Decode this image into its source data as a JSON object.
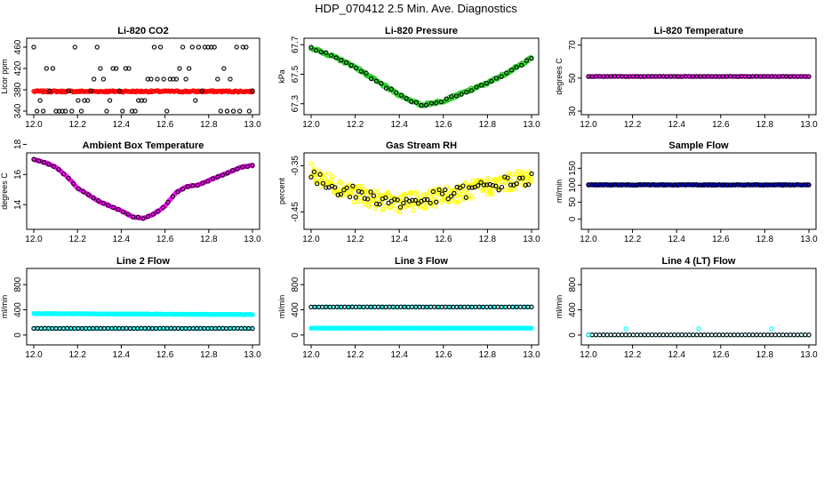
{
  "figure": {
    "title": "HDP_070412  2.5 Min. Ave. Diagnostics"
  },
  "chart_data": [
    {
      "type": "scatter",
      "title": "Li-820 CO2",
      "ylabel": "Licor ppm",
      "xlim": [
        12.0,
        13.0
      ],
      "ylim": [
        340,
        470
      ],
      "x_ticks": [
        "12.0",
        "12.2",
        "12.4",
        "12.6",
        "12.8",
        "13.0"
      ],
      "y_ticks": [
        "340",
        "380",
        "420",
        "460"
      ],
      "series": [
        {
          "name": "main",
          "color": "#ff0000",
          "kind": "flat",
          "value": 377,
          "noise": 1.5,
          "n": 200
        },
        {
          "name": "ref",
          "color": "#000000",
          "kind": "levels",
          "levels": [
            340,
            360,
            378,
            400,
            420,
            460
          ],
          "n": 70
        }
      ]
    },
    {
      "type": "scatter",
      "title": "Li-820 Pressure",
      "ylabel": "kPa",
      "xlim": [
        12.0,
        13.0
      ],
      "ylim": [
        67.25,
        67.72
      ],
      "x_ticks": [
        "12.0",
        "12.2",
        "12.4",
        "12.6",
        "12.8",
        "13.0"
      ],
      "y_ticks": [
        "67.3",
        "67.5",
        "67.7"
      ],
      "series": [
        {
          "name": "main",
          "color": "#22cc22",
          "kind": "curve",
          "xs": [
            12.0,
            12.1,
            12.2,
            12.3,
            12.4,
            12.5,
            12.6,
            12.7,
            12.8,
            12.9,
            13.0
          ],
          "ys": [
            67.68,
            67.62,
            67.55,
            67.45,
            67.36,
            67.29,
            67.32,
            67.38,
            67.44,
            67.52,
            67.61
          ],
          "noise": 0.01,
          "n": 240
        },
        {
          "name": "ref",
          "color": "#000000",
          "kind": "curve",
          "xs": [
            12.0,
            12.1,
            12.2,
            12.3,
            12.4,
            12.5,
            12.6,
            12.7,
            12.8,
            12.9,
            13.0
          ],
          "ys": [
            67.68,
            67.62,
            67.55,
            67.45,
            67.36,
            67.29,
            67.32,
            67.38,
            67.44,
            67.52,
            67.61
          ],
          "noise": 0.008,
          "n": 45
        }
      ]
    },
    {
      "type": "scatter",
      "title": "Li-820 Temperature",
      "ylabel": "degrees C",
      "xlim": [
        12.0,
        13.0
      ],
      "ylim": [
        30,
        72
      ],
      "x_ticks": [
        "12.0",
        "12.2",
        "12.4",
        "12.6",
        "12.8",
        "13.0"
      ],
      "y_ticks": [
        "30",
        "50",
        "70"
      ],
      "series": [
        {
          "name": "main",
          "color": "#ff00ff",
          "kind": "flat",
          "value": 51,
          "noise": 0.05,
          "n": 200
        },
        {
          "name": "ref",
          "color": "#000000",
          "kind": "flat",
          "value": 51,
          "noise": 0.05,
          "n": 60
        }
      ]
    },
    {
      "type": "scatter",
      "title": "Ambient Box Temperature",
      "ylabel": "degrees C",
      "xlim": [
        12.0,
        13.0
      ],
      "ylim": [
        12.6,
        17.2
      ],
      "x_ticks": [
        "12.0",
        "12.2",
        "12.4",
        "12.6",
        "12.8",
        "13.0"
      ],
      "y_ticks": [
        "14",
        "16",
        "18"
      ],
      "series": [
        {
          "name": "main",
          "color": "#ff00ff",
          "kind": "curve",
          "xs": [
            12.0,
            12.05,
            12.1,
            12.15,
            12.2,
            12.3,
            12.4,
            12.45,
            12.5,
            12.55,
            12.6,
            12.65,
            12.7,
            12.75,
            12.8,
            12.85,
            12.9,
            12.95,
            13.0
          ],
          "ys": [
            17.0,
            16.8,
            16.5,
            15.9,
            15.1,
            14.2,
            13.6,
            13.2,
            13.1,
            13.4,
            13.9,
            14.8,
            15.2,
            15.3,
            15.6,
            15.9,
            16.2,
            16.5,
            16.6
          ],
          "noise": 0.03,
          "n": 230
        },
        {
          "name": "ref",
          "color": "#000000",
          "kind": "curve",
          "xs": [
            12.0,
            12.05,
            12.1,
            12.15,
            12.2,
            12.3,
            12.4,
            12.45,
            12.5,
            12.55,
            12.6,
            12.65,
            12.7,
            12.75,
            12.8,
            12.85,
            12.9,
            12.95,
            13.0
          ],
          "ys": [
            17.0,
            16.8,
            16.5,
            15.9,
            15.1,
            14.2,
            13.6,
            13.2,
            13.1,
            13.4,
            13.9,
            14.8,
            15.2,
            15.3,
            15.6,
            15.9,
            16.2,
            16.5,
            16.6
          ],
          "noise": 0.03,
          "n": 45
        }
      ]
    },
    {
      "type": "scatter",
      "title": "Gas Stream RH",
      "ylabel": "percent",
      "xlim": [
        12.0,
        13.0
      ],
      "ylim": [
        -0.48,
        -0.33
      ],
      "x_ticks": [
        "12.0",
        "12.2",
        "12.4",
        "12.6",
        "12.8",
        "13.0"
      ],
      "y_ticks": [
        "-0.45",
        "-0.35"
      ],
      "series": [
        {
          "name": "main",
          "color": "#ffff00",
          "kind": "curve",
          "xs": [
            12.0,
            12.1,
            12.2,
            12.3,
            12.4,
            12.5,
            12.6,
            12.7,
            12.8,
            12.9,
            13.0
          ],
          "ys": [
            -0.365,
            -0.39,
            -0.41,
            -0.425,
            -0.43,
            -0.425,
            -0.415,
            -0.405,
            -0.395,
            -0.385,
            -0.37
          ],
          "noise": 0.02,
          "n": 320
        },
        {
          "name": "ref",
          "color": "#000000",
          "kind": "curve",
          "xs": [
            12.0,
            12.1,
            12.2,
            12.3,
            12.4,
            12.5,
            12.6,
            12.7,
            12.8,
            12.9,
            13.0
          ],
          "ys": [
            -0.375,
            -0.395,
            -0.41,
            -0.42,
            -0.43,
            -0.425,
            -0.415,
            -0.405,
            -0.395,
            -0.385,
            -0.38
          ],
          "noise": 0.015,
          "n": 75
        }
      ]
    },
    {
      "type": "scatter",
      "title": "Sample Flow",
      "ylabel": "ml/min",
      "xlim": [
        12.0,
        13.0
      ],
      "ylim": [
        -20,
        185
      ],
      "x_ticks": [
        "12.0",
        "12.2",
        "12.4",
        "12.6",
        "12.8",
        "13.0"
      ],
      "y_ticks": [
        "0",
        "50",
        "100",
        "150"
      ],
      "series": [
        {
          "name": "main",
          "color": "#0000cc",
          "kind": "flat",
          "value": 101,
          "noise": 0.8,
          "n": 220
        },
        {
          "name": "ref",
          "color": "#000000",
          "kind": "flat",
          "value": 101,
          "noise": 0.8,
          "n": 60
        }
      ]
    },
    {
      "type": "scatter",
      "title": "Line 2 Flow",
      "ylabel": "ml/min",
      "xlim": [
        12.0,
        13.0
      ],
      "ylim": [
        -100,
        1000
      ],
      "x_ticks": [
        "12.0",
        "12.2",
        "12.4",
        "12.6",
        "12.8",
        "13.0"
      ],
      "y_ticks": [
        "0",
        "400",
        "800"
      ],
      "series": [
        {
          "name": "upper",
          "color": "#00ffff",
          "kind": "curve",
          "xs": [
            12.0,
            13.0
          ],
          "ys": [
            340,
            325
          ],
          "noise": 3,
          "n": 230
        },
        {
          "name": "lower",
          "color": "#00ffff",
          "kind": "flat",
          "value": 105,
          "noise": 1,
          "n": 120
        },
        {
          "name": "ref",
          "color": "#000000",
          "kind": "flat",
          "value": 105,
          "noise": 1,
          "n": 60
        }
      ]
    },
    {
      "type": "scatter",
      "title": "Line 3 Flow",
      "ylabel": "ml/min",
      "xlim": [
        12.0,
        13.0
      ],
      "ylim": [
        -100,
        1000
      ],
      "x_ticks": [
        "12.0",
        "12.2",
        "12.4",
        "12.6",
        "12.8",
        "13.0"
      ],
      "y_ticks": [
        "0",
        "400",
        "800"
      ],
      "series": [
        {
          "name": "upper",
          "color": "#00ffff",
          "kind": "flat",
          "value": 445,
          "noise": 1.5,
          "n": 80
        },
        {
          "name": "lower",
          "color": "#00ffff",
          "kind": "flat",
          "value": 110,
          "noise": 2,
          "n": 240
        },
        {
          "name": "ref",
          "color": "#000000",
          "kind": "flat",
          "value": 445,
          "noise": 1.5,
          "n": 60
        }
      ]
    },
    {
      "type": "scatter",
      "title": "Line 4 (LT) Flow",
      "ylabel": "ml/min",
      "xlim": [
        12.0,
        13.0
      ],
      "ylim": [
        -100,
        1000
      ],
      "x_ticks": [
        "12.0",
        "12.2",
        "12.4",
        "12.6",
        "12.8",
        "13.0"
      ],
      "y_ticks": [
        "0",
        "400",
        "800"
      ],
      "series": [
        {
          "name": "main",
          "color": "#00ffff",
          "kind": "flat",
          "value": 2,
          "noise": 0.5,
          "n": 60
        },
        {
          "name": "ref",
          "color": "#000000",
          "kind": "flat",
          "value": 2,
          "noise": 0.5,
          "n": 60
        },
        {
          "name": "spikes",
          "color": "#00ffff",
          "kind": "points",
          "xs": [
            12.0,
            12.17,
            12.5,
            12.83
          ],
          "ys": [
            0,
            100,
            100,
            100
          ]
        }
      ]
    }
  ]
}
